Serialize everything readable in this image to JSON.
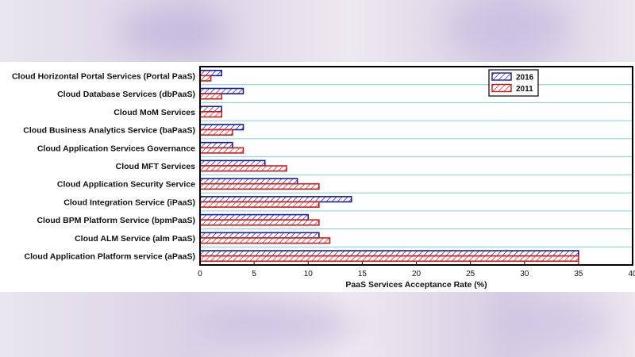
{
  "chart_data": {
    "type": "bar",
    "orientation": "horizontal",
    "title": "",
    "xlabel": "PaaS Services Acceptance Rate (%)",
    "ylabel": "",
    "xlim": [
      0,
      40
    ],
    "xticks": [
      0,
      5,
      10,
      15,
      20,
      25,
      30,
      35,
      40
    ],
    "grid": true,
    "legend_position": "top-right",
    "categories": [
      "Cloud Horizontal Portal Services (Portal PaaS)",
      "Cloud Database Services (dbPaaS)",
      "Cloud MoM Services",
      "Cloud Business Analytics Service (baPaaS)",
      "Cloud Application Services Governance",
      "Cloud MFT Services",
      "Cloud Application Security Service",
      "Cloud Integration Service (iPaaS)",
      "Cloud BPM Platform Service (bpmPaaS)",
      "Cloud ALM Service (alm PaaS)",
      "Cloud Application Platform service (aPaaS)"
    ],
    "series": [
      {
        "name": "2016",
        "color": "#1a1aa8",
        "values": [
          2,
          4,
          2,
          4,
          3,
          6,
          9,
          14,
          10,
          11,
          35
        ]
      },
      {
        "name": "2011",
        "color": "#d61a1a",
        "values": [
          1,
          2,
          2,
          3,
          4,
          8,
          11,
          11,
          11,
          12,
          35
        ]
      }
    ]
  }
}
